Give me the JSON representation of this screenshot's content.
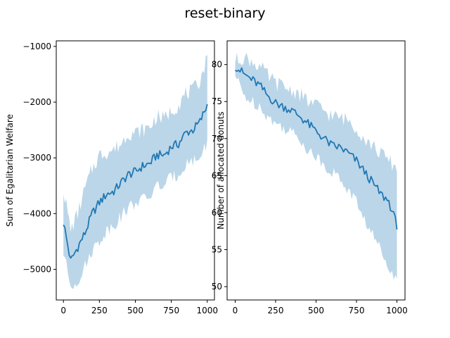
{
  "figure": {
    "title": "reset-binary"
  },
  "chart_data": [
    {
      "type": "line",
      "xlabel": "",
      "ylabel": "Sum of Egalitarian Welfare",
      "xlim": [
        -50,
        1050
      ],
      "ylim": [
        -5550,
        -900
      ],
      "xticks": [
        0,
        250,
        500,
        750,
        1000
      ],
      "xtick_labels": [
        "0",
        "250",
        "500",
        "750",
        "1000"
      ],
      "yticks": [
        -5000,
        -4000,
        -3000,
        -2000,
        -1000
      ],
      "ytick_labels": [
        "−5000",
        "−4000",
        "−3000",
        "−2000",
        "−1000"
      ],
      "grid": false,
      "line_color": "#1f77b4",
      "band_color": "#1f77b4",
      "band_opacity": 0.3,
      "series": [
        {
          "x": [
            0,
            50,
            100,
            150,
            200,
            250,
            300,
            350,
            400,
            450,
            500,
            550,
            600,
            650,
            700,
            750,
            800,
            850,
            900,
            950,
            1000
          ],
          "mean": [
            -4150,
            -4850,
            -4600,
            -4350,
            -4000,
            -3800,
            -3650,
            -3600,
            -3450,
            -3300,
            -3250,
            -3150,
            -3100,
            -2950,
            -2950,
            -2800,
            -2750,
            -2550,
            -2500,
            -2350,
            -2050
          ],
          "lower": [
            -4700,
            -5300,
            -5200,
            -4950,
            -4650,
            -4500,
            -4300,
            -4200,
            -4050,
            -3900,
            -3800,
            -3750,
            -3700,
            -3500,
            -3500,
            -3350,
            -3300,
            -3100,
            -3050,
            -3000,
            -2700
          ],
          "upper": [
            -3550,
            -4300,
            -4000,
            -3550,
            -3200,
            -2950,
            -2900,
            -2850,
            -2750,
            -2550,
            -2550,
            -2500,
            -2450,
            -2250,
            -2300,
            -2150,
            -2050,
            -1850,
            -1800,
            -1600,
            -1200
          ]
        }
      ]
    },
    {
      "type": "line",
      "xlabel": "",
      "ylabel": "Number of allocated donuts",
      "xlim": [
        -50,
        1050
      ],
      "ylim": [
        48.2,
        83.2
      ],
      "xticks": [
        0,
        250,
        500,
        750,
        1000
      ],
      "xtick_labels": [
        "0",
        "250",
        "500",
        "750",
        "1000"
      ],
      "yticks": [
        50,
        55,
        60,
        65,
        70,
        75,
        80
      ],
      "ytick_labels": [
        "50",
        "55",
        "60",
        "65",
        "70",
        "75",
        "80"
      ],
      "grid": false,
      "line_color": "#1f77b4",
      "band_color": "#1f77b4",
      "band_opacity": 0.3,
      "series": [
        {
          "x": [
            0,
            50,
            100,
            150,
            200,
            250,
            300,
            350,
            400,
            450,
            500,
            550,
            600,
            650,
            700,
            750,
            800,
            850,
            900,
            950,
            1000
          ],
          "mean": [
            79.8,
            78.8,
            78.0,
            77.2,
            75.8,
            74.8,
            74.3,
            73.8,
            73.0,
            72.0,
            71.0,
            70.0,
            69.0,
            68.8,
            68.0,
            67.0,
            65.5,
            64.0,
            62.5,
            61.5,
            58.3
          ],
          "lower": [
            78.5,
            76.0,
            75.0,
            74.5,
            73.0,
            72.0,
            71.5,
            70.8,
            70.0,
            68.5,
            67.5,
            66.5,
            65.5,
            64.5,
            63.0,
            61.5,
            59.0,
            57.0,
            55.0,
            53.0,
            50.5
          ],
          "upper": [
            80.5,
            81.0,
            80.5,
            79.8,
            78.5,
            77.5,
            77.0,
            76.5,
            76.0,
            75.0,
            74.5,
            73.8,
            73.0,
            72.8,
            72.5,
            71.5,
            70.0,
            69.0,
            68.0,
            67.0,
            66.0
          ]
        }
      ]
    }
  ]
}
